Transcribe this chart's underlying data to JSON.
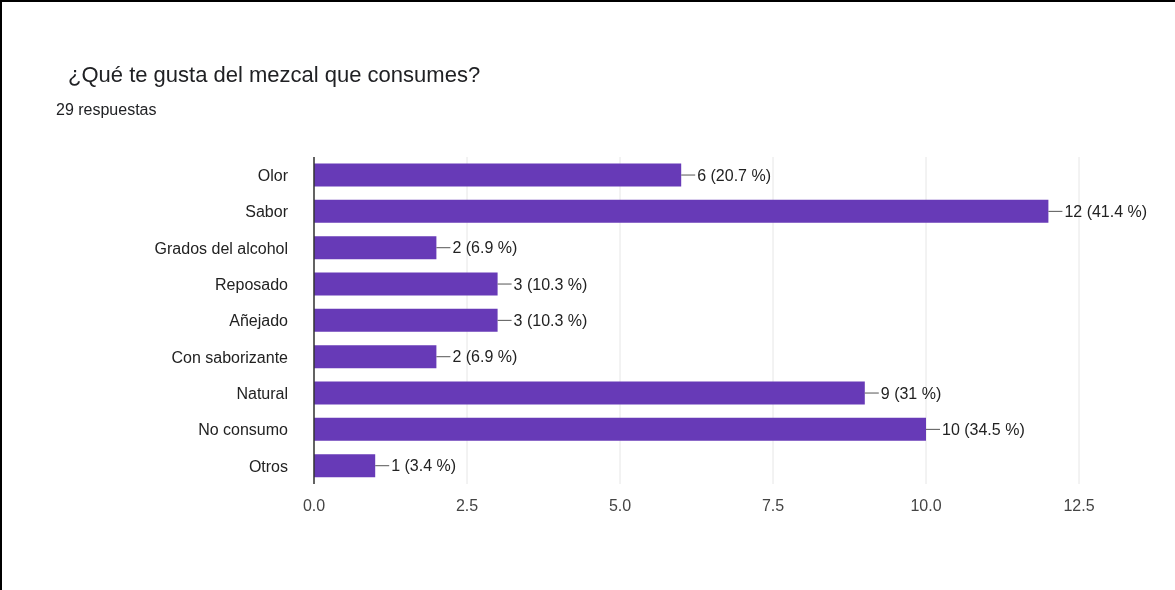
{
  "chart_data": {
    "type": "bar",
    "orientation": "horizontal",
    "title": "¿Qué te gusta del mezcal que consumes?",
    "subtitle": "29 respuestas",
    "categories": [
      "Olor",
      "Sabor",
      "Grados del alcohol",
      "Reposado",
      "Añejado",
      "Con saborizante",
      "Natural",
      "No consumo",
      "Otros"
    ],
    "values": [
      6,
      12,
      2,
      3,
      3,
      2,
      9,
      10,
      1
    ],
    "value_labels": [
      "6 (20.7 %)",
      "12 (41.4 %)",
      "2 (6.9 %)",
      "3 (10.3 %)",
      "3 (10.3 %)",
      "2 (6.9 %)",
      "9 (31 %)",
      "10 (34.5 %)",
      "1 (3.4 %)"
    ],
    "color": "#673ab7",
    "xlim": [
      0,
      12.5
    ],
    "xticks": [
      {
        "value": 0,
        "label": "0.0"
      },
      {
        "value": 2.5,
        "label": "2.5"
      },
      {
        "value": 5,
        "label": "5.0"
      },
      {
        "value": 7.5,
        "label": "7.5"
      },
      {
        "value": 10,
        "label": "10.0"
      },
      {
        "value": 12.5,
        "label": "12.5"
      }
    ],
    "grid": "x"
  }
}
